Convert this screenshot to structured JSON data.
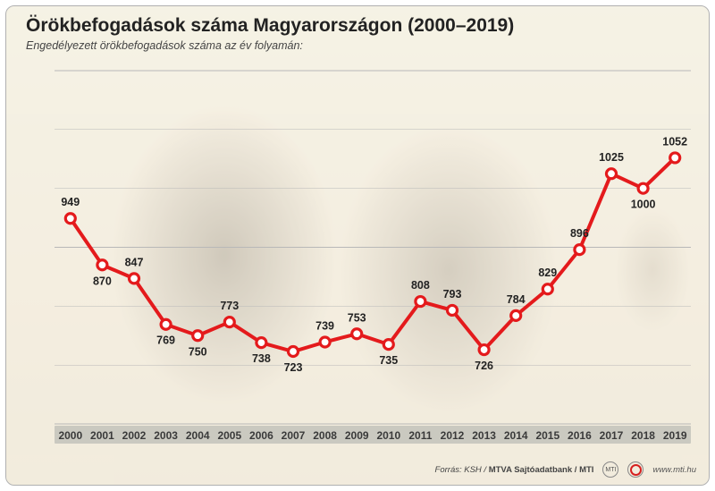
{
  "header": {
    "title": "Örökbefogadások száma Magyarországon (2000–2019)",
    "subtitle": "Engedélyezett örökbefogadások száma az év folyamán:"
  },
  "chart": {
    "type": "line",
    "years": [
      "2000",
      "2001",
      "2002",
      "2003",
      "2004",
      "2005",
      "2006",
      "2007",
      "2008",
      "2009",
      "2010",
      "2011",
      "2012",
      "2013",
      "2014",
      "2015",
      "2016",
      "2017",
      "2018",
      "2019"
    ],
    "values": [
      949,
      870,
      847,
      769,
      750,
      773,
      738,
      723,
      739,
      753,
      735,
      808,
      793,
      726,
      784,
      829,
      896,
      1025,
      1000,
      1052
    ],
    "line_color": "#e41a1c",
    "line_width": 4,
    "marker_fill": "#ffffff",
    "marker_stroke": "#e41a1c",
    "marker_stroke_width": 3.2,
    "marker_radius": 5.5,
    "ylim": [
      600,
      1200
    ],
    "ytick_step": 100,
    "grid_color": "#b8b8b8",
    "background_color": "#f7f6f1",
    "x_band_color": "#cac9c0",
    "label_fontsize": 12.5,
    "axis_fontsize": 10.5,
    "x_label_fontsize": 12,
    "label_offsets": {
      "2000": "above",
      "2001": "below",
      "2002": "above",
      "2003": "below",
      "2004": "below",
      "2005": "above",
      "2006": "below",
      "2007": "below",
      "2008": "above",
      "2009": "above",
      "2010": "below",
      "2011": "above",
      "2012": "above",
      "2013": "below",
      "2014": "above",
      "2015": "above",
      "2016": "above",
      "2017": "above",
      "2018": "below",
      "2019": "above"
    }
  },
  "footer": {
    "source_prefix": "Forrás: KSH / ",
    "source_bold": "MTVA Sajtóadatbank / MTI",
    "url": "www.mti.hu",
    "logo_text": "MTI"
  }
}
